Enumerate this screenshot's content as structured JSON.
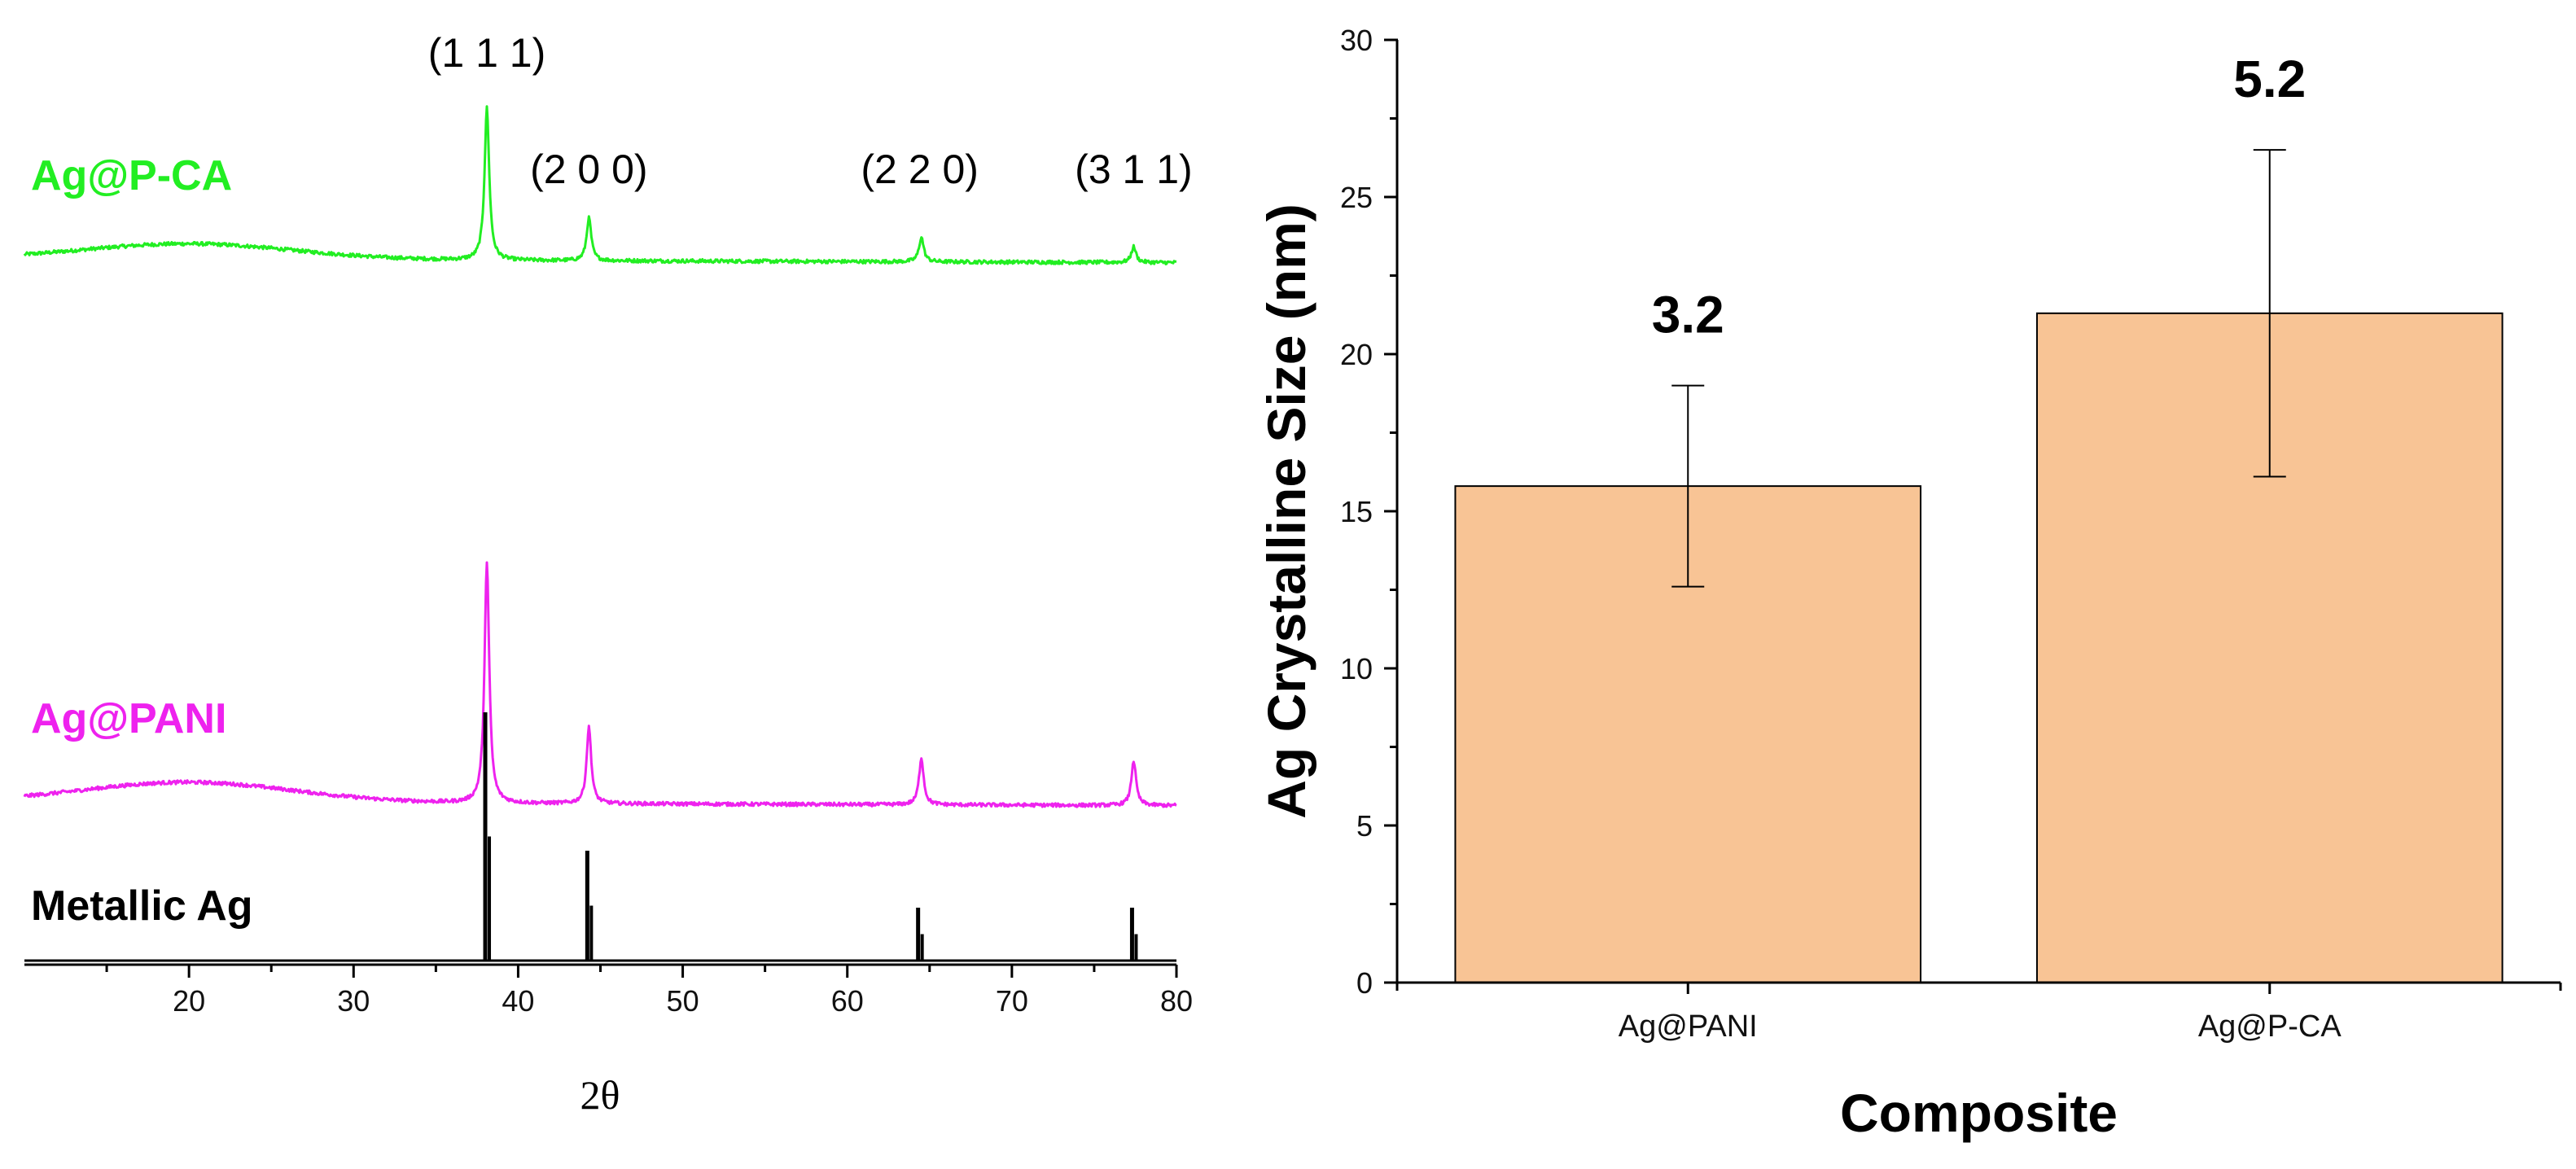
{
  "chart_data": [
    {
      "type": "line",
      "title": "",
      "xlabel": "2θ",
      "ylabel": "",
      "xlim": [
        10,
        80
      ],
      "xticks": [
        20,
        30,
        40,
        50,
        60,
        70,
        80
      ],
      "peak_labels": [
        {
          "text": "(1 1 1)",
          "x": 38.1
        },
        {
          "text": "(2 0 0)",
          "x": 44.3
        },
        {
          "text": "(2 2 0)",
          "x": 64.4
        },
        {
          "text": "(3 1 1)",
          "x": 77.4
        }
      ],
      "series": [
        {
          "name": "Ag@P-CA",
          "color": "#22ee22",
          "style": "pattern",
          "baseline": 0.8,
          "hump_center": 20,
          "hump_height": 0.35,
          "peaks": [
            {
              "x": 38.1,
              "h": 3.4
            },
            {
              "x": 44.3,
              "h": 0.95
            },
            {
              "x": 64.5,
              "h": 0.55
            },
            {
              "x": 77.4,
              "h": 0.35
            }
          ]
        },
        {
          "name": "Ag@PANI",
          "color": "#ee22ee",
          "style": "pattern",
          "baseline": 0.8,
          "hump_center": 20,
          "hump_height": 0.45,
          "peaks": [
            {
              "x": 38.1,
              "h": 5.4
            },
            {
              "x": 44.3,
              "h": 1.7
            },
            {
              "x": 64.5,
              "h": 1.05
            },
            {
              "x": 77.4,
              "h": 1.0
            }
          ]
        },
        {
          "name": "Metallic Ag",
          "color": "#000000",
          "style": "sticks",
          "peaks": [
            {
              "x": 38.1,
              "h": 3.05
            },
            {
              "x": 44.3,
              "h": 1.35
            },
            {
              "x": 64.4,
              "h": 0.65
            },
            {
              "x": 77.4,
              "h": 0.65
            }
          ]
        }
      ]
    },
    {
      "type": "bar",
      "title": "",
      "xlabel": "Composite",
      "ylabel": "Ag Crystalline Size (nm)",
      "ylim": [
        0,
        30
      ],
      "yticks": [
        0,
        5,
        10,
        15,
        20,
        25,
        30
      ],
      "categories": [
        "Ag@PANI",
        "Ag@P-CA"
      ],
      "values": [
        15.8,
        21.3
      ],
      "errors": [
        3.2,
        5.2
      ],
      "data_labels": [
        "3.2",
        "5.2"
      ],
      "bar_color": "#f8c495"
    }
  ]
}
